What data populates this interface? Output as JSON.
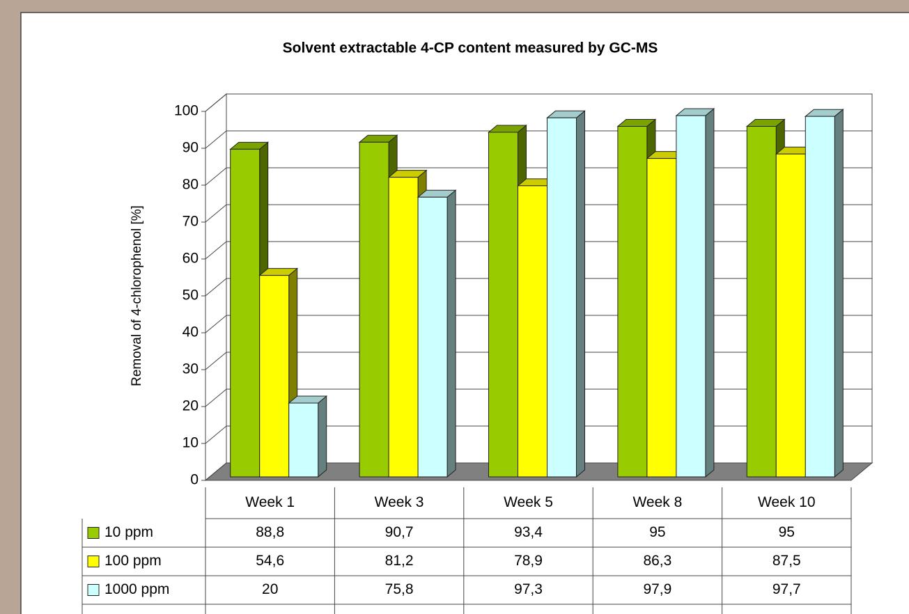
{
  "chart_data": {
    "type": "bar3d",
    "title": "Solvent extractable 4-CP content measured by GC-MS",
    "y_label": "Removal of 4-chlorophenol [%]",
    "categories": [
      "Week 1",
      "Week 3",
      "Week 5",
      "Week 8",
      "Week 10"
    ],
    "series": [
      {
        "name": "10 ppm",
        "color": "#99cc00",
        "values": [
          88.8,
          90.7,
          93.4,
          95,
          95
        ],
        "value_labels": [
          "88,8",
          "90,7",
          "93,4",
          "95",
          "95"
        ]
      },
      {
        "name": "100 ppm",
        "color": "#ffff00",
        "values": [
          54.6,
          81.2,
          78.9,
          86.3,
          87.5
        ],
        "value_labels": [
          "54,6",
          "81,2",
          "78,9",
          "86,3",
          "87,5"
        ]
      },
      {
        "name": "1000 ppm",
        "color": "#ccffff",
        "values": [
          20,
          75.8,
          97.3,
          97.9,
          97.7
        ],
        "value_labels": [
          "20",
          "75,8",
          "97,3",
          "97,9",
          "97,7"
        ]
      }
    ],
    "ylim": [
      0,
      100
    ],
    "yticks": [
      0,
      10,
      20,
      30,
      40,
      50,
      60,
      70,
      80,
      90,
      100
    ],
    "grid": true
  }
}
